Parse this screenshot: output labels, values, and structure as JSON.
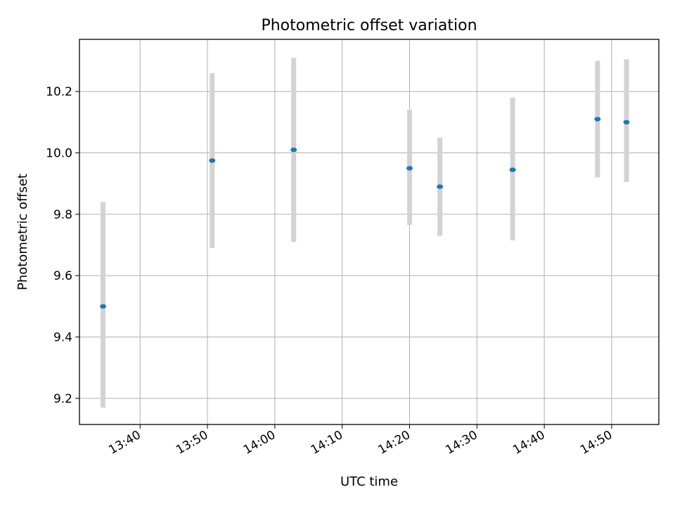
{
  "chart_data": {
    "type": "scatter",
    "title": "Photometric offset variation",
    "xlabel": "UTC time",
    "ylabel": "Photometric offset",
    "xlim": [
      "13:31",
      "14:57"
    ],
    "ylim": [
      9.115,
      10.37
    ],
    "grid": true,
    "x_ticks": [
      "13:40",
      "13:50",
      "14:00",
      "14:10",
      "14:20",
      "14:30",
      "14:40",
      "14:50"
    ],
    "y_ticks": [
      9.2,
      9.4,
      9.6,
      9.8,
      10.0,
      10.2
    ],
    "y_tick_labels": [
      "9.2",
      "9.4",
      "9.6",
      "9.8",
      "10.0",
      "10.2"
    ],
    "series": [
      {
        "marker_color": "#1f77b4",
        "errorbar_color": "#d3d3d3",
        "points": [
          {
            "x": "13:34.5",
            "y": 9.5,
            "ylow": 9.17,
            "yhigh": 9.84
          },
          {
            "x": "13:50.7",
            "y": 9.975,
            "ylow": 9.69,
            "yhigh": 10.26
          },
          {
            "x": "14:02.8",
            "y": 10.01,
            "ylow": 9.71,
            "yhigh": 10.31
          },
          {
            "x": "14:20.0",
            "y": 9.95,
            "ylow": 9.765,
            "yhigh": 10.14
          },
          {
            "x": "14:24.5",
            "y": 9.89,
            "ylow": 9.73,
            "yhigh": 10.05
          },
          {
            "x": "14:35.3",
            "y": 9.945,
            "ylow": 9.715,
            "yhigh": 10.18
          },
          {
            "x": "14:47.9",
            "y": 10.11,
            "ylow": 9.92,
            "yhigh": 10.3
          },
          {
            "x": "14:52.2",
            "y": 10.1,
            "ylow": 9.905,
            "yhigh": 10.305
          }
        ]
      }
    ]
  }
}
